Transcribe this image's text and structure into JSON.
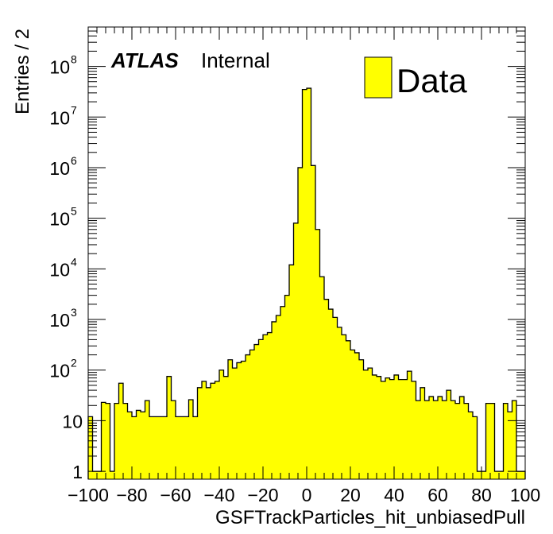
{
  "chart_data": {
    "type": "bar",
    "style": "histogram",
    "xlabel": "GSFTrackParticles_hit_unbiasedPull",
    "ylabel": "Entries / 2",
    "xlim": [
      -100,
      100
    ],
    "ylim": [
      0.7,
      600000000
    ],
    "yscale": "log",
    "bin_width": 2,
    "x_ticks": [
      "−100",
      "−80",
      "−60",
      "−40",
      "−20",
      "0",
      "20",
      "40",
      "60",
      "80",
      "100"
    ],
    "y_ticks": [
      {
        "base": "1",
        "exp": ""
      },
      {
        "base": "10",
        "exp": ""
      },
      {
        "base": "10",
        "exp": "2"
      },
      {
        "base": "10",
        "exp": "3"
      },
      {
        "base": "10",
        "exp": "4"
      },
      {
        "base": "10",
        "exp": "5"
      },
      {
        "base": "10",
        "exp": "6"
      },
      {
        "base": "10",
        "exp": "7"
      },
      {
        "base": "10",
        "exp": "8"
      }
    ],
    "atlas_label": "ATLAS",
    "atlas_status": "Internal",
    "series": [
      {
        "name": "Data",
        "color": "#ffff00",
        "edge_color": "#000000",
        "x": [
          -99,
          -97,
          -95,
          -93,
          -91,
          -89,
          -87,
          -85,
          -83,
          -81,
          -79,
          -77,
          -75,
          -73,
          -71,
          -69,
          -67,
          -65,
          -63,
          -61,
          -59,
          -57,
          -55,
          -53,
          -51,
          -49,
          -47,
          -45,
          -43,
          -41,
          -39,
          -37,
          -35,
          -33,
          -31,
          -29,
          -27,
          -25,
          -23,
          -21,
          -19,
          -17,
          -15,
          -13,
          -11,
          -9,
          -7,
          -5,
          -3,
          -1,
          1,
          3,
          5,
          7,
          9,
          11,
          13,
          15,
          17,
          19,
          21,
          23,
          25,
          27,
          29,
          31,
          33,
          35,
          37,
          39,
          41,
          43,
          45,
          47,
          49,
          51,
          53,
          55,
          57,
          59,
          61,
          63,
          65,
          67,
          69,
          71,
          73,
          75,
          77,
          79,
          81,
          83,
          85,
          87,
          89,
          91,
          93,
          95,
          97,
          99
        ],
        "values": [
          12,
          1,
          1,
          23,
          22,
          1,
          22,
          55,
          22,
          15,
          12,
          16,
          15,
          25,
          12,
          12,
          12,
          12,
          75,
          25,
          12,
          12,
          12,
          26,
          12,
          45,
          60,
          45,
          55,
          60,
          100,
          75,
          160,
          110,
          140,
          150,
          200,
          250,
          320,
          400,
          500,
          550,
          900,
          1200,
          1800,
          3000,
          12000,
          80000,
          1000000,
          35000000,
          37000000,
          1100000,
          60000,
          7000,
          2500,
          1600,
          1100,
          700,
          500,
          380,
          250,
          220,
          160,
          100,
          110,
          80,
          75,
          60,
          70,
          65,
          80,
          65,
          65,
          95,
          60,
          25,
          45,
          25,
          30,
          25,
          30,
          25,
          40,
          25,
          22,
          30,
          22,
          15,
          12,
          1,
          1,
          22,
          22,
          1,
          1,
          22,
          15,
          25,
          1,
          1
        ]
      }
    ]
  }
}
